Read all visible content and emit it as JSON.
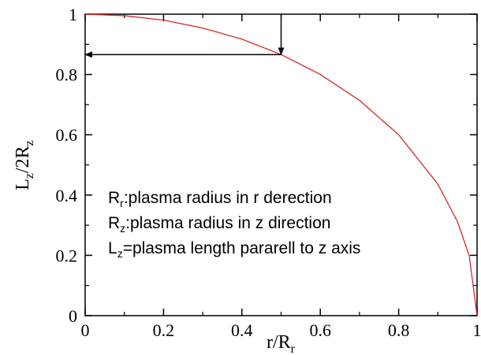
{
  "chart_data": {
    "type": "line",
    "xlabel_main": "r/R",
    "xlabel_sub": "r",
    "ylabel_main": "L",
    "ylabel_sub1": "z",
    "ylabel_mid": "/2R",
    "ylabel_sub2": "z",
    "xlim": [
      0,
      1
    ],
    "ylim": [
      0,
      1
    ],
    "x_ticks": [
      "0",
      "0.2",
      "0.4",
      "0.6",
      "0.8",
      "1"
    ],
    "y_ticks": [
      "0",
      "0.2",
      "0.4",
      "0.6",
      "0.8",
      "1"
    ],
    "x_tick_values": [
      0,
      0.2,
      0.4,
      0.6,
      0.8,
      1
    ],
    "y_tick_values": [
      0,
      0.2,
      0.4,
      0.6,
      0.8,
      1
    ],
    "grid": false,
    "series": [
      {
        "color": "#d42a2a",
        "x": [
          0,
          0.1,
          0.2,
          0.3,
          0.4,
          0.5,
          0.6,
          0.7,
          0.8,
          0.9,
          0.95,
          0.98,
          1.0
        ],
        "y": [
          1,
          0.995,
          0.98,
          0.954,
          0.917,
          0.866,
          0.8,
          0.714,
          0.6,
          0.436,
          0.312,
          0.199,
          0
        ]
      }
    ],
    "arrow": {
      "x": 0.5,
      "y": 0.866,
      "x_end": 0
    },
    "annotations": [
      {
        "main": "R",
        "sub": "r",
        "rest": ":plasma radius in r derection"
      },
      {
        "main": "R",
        "sub": "z",
        "rest": ":plasma radius in z direction"
      },
      {
        "main": "L",
        "sub": "z",
        "rest": "=plasma length pararell to z axis"
      }
    ]
  }
}
